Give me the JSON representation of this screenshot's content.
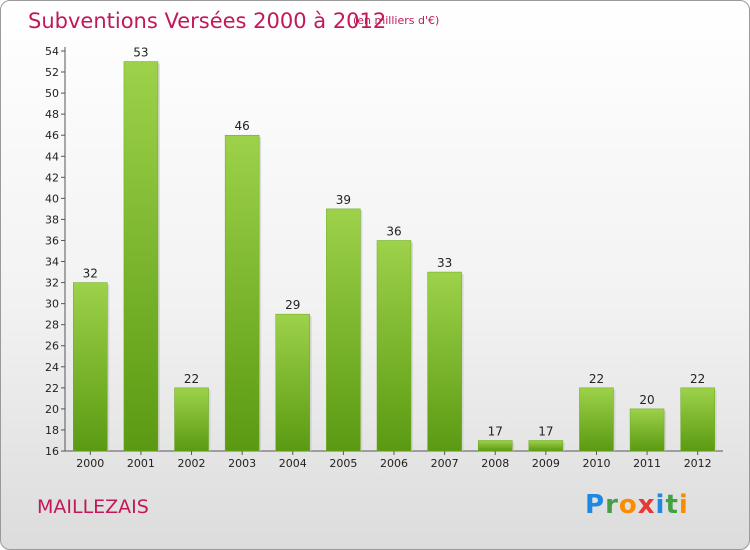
{
  "header": {
    "title": "Subventions Versées 2000 à 2012",
    "subtitle": "(en milliers d'€)"
  },
  "footer": {
    "commune": "MAILLEZAIS",
    "logo_letters": [
      {
        "ch": "P",
        "color": "#1e88e5"
      },
      {
        "ch": "r",
        "color": "#43a047"
      },
      {
        "ch": "o",
        "color": "#fb8c00"
      },
      {
        "ch": "x",
        "color": "#e53935"
      },
      {
        "ch": "i",
        "color": "#1e88e5"
      },
      {
        "ch": "t",
        "color": "#43a047"
      },
      {
        "ch": "i",
        "color": "#fb8c00"
      }
    ]
  },
  "chart_data": {
    "type": "bar",
    "title": "Subventions Versées 2000 à 2012",
    "subtitle": "(en milliers d'€)",
    "categories": [
      "2000",
      "2001",
      "2002",
      "2003",
      "2004",
      "2005",
      "2006",
      "2007",
      "2008",
      "2009",
      "2010",
      "2011",
      "2012"
    ],
    "values": [
      32,
      53,
      22,
      46,
      29,
      39,
      36,
      33,
      17,
      17,
      22,
      20,
      22
    ],
    "ylim": [
      16,
      54
    ],
    "yticks": [
      16,
      18,
      20,
      22,
      24,
      26,
      28,
      30,
      32,
      34,
      36,
      38,
      40,
      42,
      44,
      46,
      48,
      50,
      52,
      54
    ],
    "grid": false,
    "bar_color": "#7cbb2c",
    "bar_color_light": "#9dd24a",
    "bar_color_dark": "#5a9a12"
  }
}
